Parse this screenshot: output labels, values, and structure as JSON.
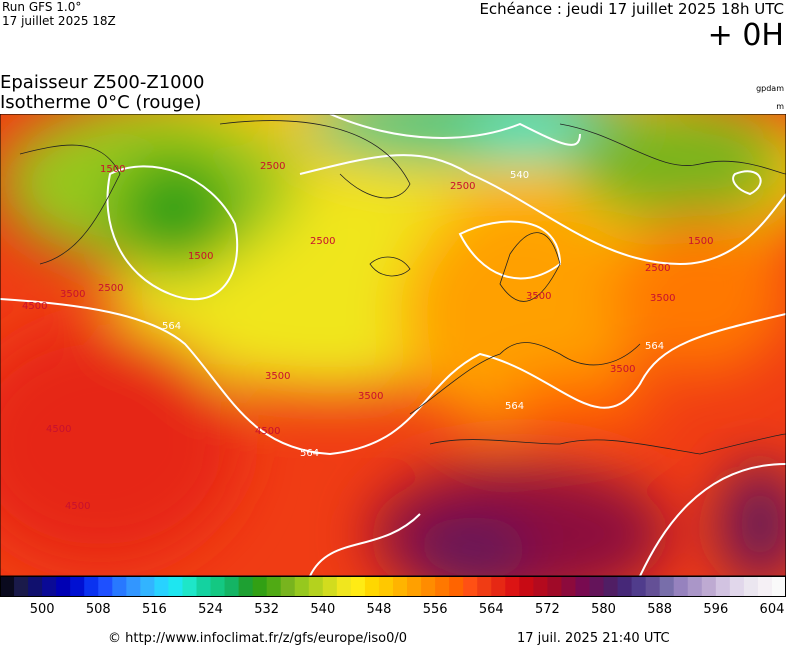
{
  "header": {
    "run": "Run GFS 1.0°",
    "run_date": "17 juillet 2025 18Z",
    "echeance": "Echéance : jeudi 17 juillet 2025 18h UTC",
    "lead": "+ 0H"
  },
  "title": {
    "line1": "Epaisseur Z500-Z1000",
    "line2": "Isotherme 0°C (rouge)"
  },
  "units": {
    "thickness": "gpdam",
    "isotherm": "m"
  },
  "map": {
    "contour_labels": [
      "1500",
      "2500",
      "2500",
      "3500",
      "4500",
      "564",
      "3500",
      "4500",
      "564",
      "2500",
      "3500",
      "564",
      "540",
      "1500",
      "2500",
      "3500",
      "564",
      "1500",
      "2500",
      "3500",
      "4500",
      "4500",
      "3500"
    ]
  },
  "colorbar": {
    "labels": [
      500,
      508,
      516,
      524,
      532,
      540,
      548,
      556,
      564,
      572,
      580,
      588,
      596,
      604
    ],
    "colors": [
      "#0a0a1e",
      "#1a1a4a",
      "#10106e",
      "#0a0a96",
      "#0000b4",
      "#0010d2",
      "#0a32f0",
      "#1e50ff",
      "#2878ff",
      "#3296ff",
      "#32b4ff",
      "#28d2ff",
      "#1ee6f0",
      "#1ee6c8",
      "#14d2a0",
      "#14c882",
      "#14b464",
      "#1ea032",
      "#32a014",
      "#50aa14",
      "#78b41e",
      "#96c81e",
      "#b4d21e",
      "#d2dc1e",
      "#f0e61e",
      "#ffeb14",
      "#ffd700",
      "#ffc800",
      "#ffb400",
      "#ffa000",
      "#ff8c00",
      "#ff7800",
      "#ff6400",
      "#ff5014",
      "#f03c14",
      "#e62814",
      "#dc1414",
      "#c80a14",
      "#b40a1e",
      "#a00a28",
      "#8c0a3c",
      "#780a50",
      "#64145a",
      "#501e64",
      "#462878",
      "#503c8c",
      "#645096",
      "#786eaa",
      "#9682be",
      "#aa96c8",
      "#beaad2",
      "#d2c3e1",
      "#e1d7eb",
      "#ebe6f0",
      "#f5f0f5",
      "#fafafa"
    ]
  },
  "footer": {
    "url": "© http://www.infoclimat.fr/z/gfs/europe/iso0/0",
    "generated": "17 juil. 2025 21:40 UTC"
  }
}
